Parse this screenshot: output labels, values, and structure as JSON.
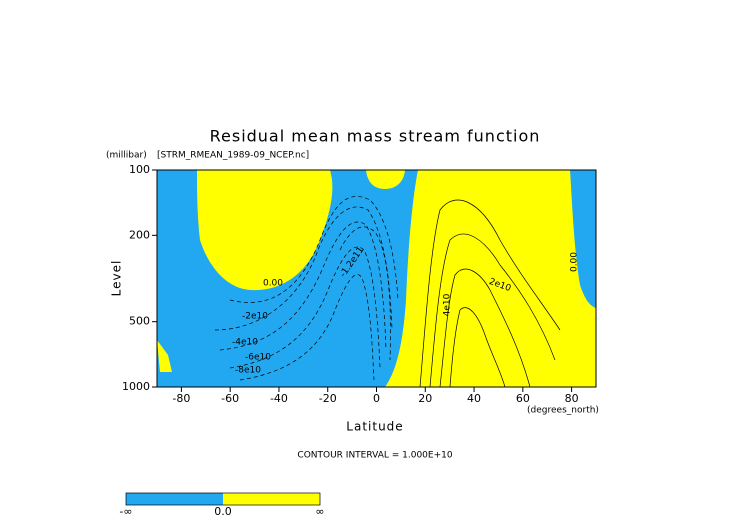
{
  "chart_data": {
    "type": "contour",
    "title": "Residual mean mass stream function",
    "dataset": "[STRM_RMEAN_1989-09_NCEP.nc]",
    "y_units": "(millibar)",
    "ylabel": "Level",
    "x_units": "(degrees_north)",
    "xlabel": "Latitude",
    "xlim": [
      -90,
      90
    ],
    "xticks": [
      -80,
      -60,
      -40,
      -20,
      0,
      20,
      40,
      60,
      80
    ],
    "ylim": [
      1000,
      100
    ],
    "yticks": [
      100,
      200,
      500,
      1000
    ],
    "log_y": true,
    "contour_interval": "CONTOUR INTERVAL = 1.000E+10",
    "annotations": [
      "0.00",
      "-2e10",
      "-4e10",
      "-6e10",
      "-8e10",
      "-1.2e11",
      "2e10",
      "4e10",
      "0.00"
    ],
    "colorbar": {
      "labels": [
        "-∞",
        "0.0",
        "∞"
      ],
      "colors": [
        "#22a8f0",
        "#ffff00"
      ]
    }
  }
}
